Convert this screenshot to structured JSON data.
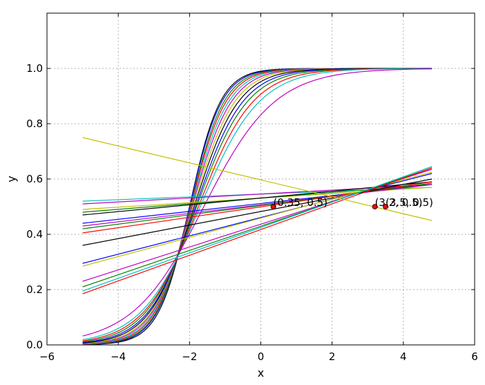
{
  "chart_data": {
    "type": "line",
    "title": "",
    "xlabel": "x",
    "ylabel": "y",
    "xlim": [
      -6,
      6
    ],
    "ylim": [
      0,
      1.2
    ],
    "xticks": [
      "−6",
      "−4",
      "−2",
      "0",
      "2",
      "4",
      "6"
    ],
    "xtick_values": [
      -6,
      -4,
      -2,
      0,
      2,
      4,
      6
    ],
    "yticks": [
      "0.0",
      "0.2",
      "0.4",
      "0.6",
      "0.8",
      "1.0"
    ],
    "ytick_values": [
      0,
      0.2,
      0.4,
      0.6,
      0.8,
      1.0
    ],
    "grid": true,
    "x_range": [
      -5,
      4.8
    ],
    "logistic_curves": [
      {
        "color": "#000000",
        "center": -2.0,
        "steepness": 2.3
      },
      {
        "color": "#0000ff",
        "center": -2.0,
        "steepness": 2.2
      },
      {
        "color": "#008000",
        "center": -1.98,
        "steepness": 2.1
      },
      {
        "color": "#ff0000",
        "center": -1.97,
        "steepness": 2.0
      },
      {
        "color": "#00bfbf",
        "center": -1.95,
        "steepness": 1.9
      },
      {
        "color": "#bf00bf",
        "center": -1.93,
        "steepness": 1.8
      },
      {
        "color": "#bfbf00",
        "center": -1.9,
        "steepness": 1.7
      },
      {
        "color": "#000000",
        "center": -1.87,
        "steepness": 1.6
      },
      {
        "color": "#0000ff",
        "center": -1.83,
        "steepness": 1.5
      },
      {
        "color": "#008000",
        "center": -1.8,
        "steepness": 1.4
      },
      {
        "color": "#ff0000",
        "center": -1.75,
        "steepness": 1.3
      },
      {
        "color": "#00bfbf",
        "center": -1.7,
        "steepness": 1.2
      },
      {
        "color": "#bf00bf",
        "center": -1.6,
        "steepness": 1.0
      }
    ],
    "lines": [
      {
        "color": "#00bfbf",
        "y_start": 0.52,
        "y_end": 0.57
      },
      {
        "color": "#bf00bf",
        "y_start": 0.51,
        "y_end": 0.58
      },
      {
        "color": "#bfbf00",
        "y_start": 0.49,
        "y_end": 0.57
      },
      {
        "color": "#008000",
        "y_start": 0.48,
        "y_end": 0.58
      },
      {
        "color": "#000000",
        "y_start": 0.47,
        "y_end": 0.59
      },
      {
        "color": "#0000ff",
        "y_start": 0.44,
        "y_end": 0.58
      },
      {
        "color": "#bf00bf",
        "y_start": 0.43,
        "y_end": 0.58
      },
      {
        "color": "#008000",
        "y_start": 0.42,
        "y_end": 0.585
      },
      {
        "color": "#ff0000",
        "y_start": 0.405,
        "y_end": 0.59
      },
      {
        "color": "#000000",
        "y_start": 0.36,
        "y_end": 0.6
      },
      {
        "color": "#0000ff",
        "y_start": 0.295,
        "y_end": 0.62
      },
      {
        "color": "#bfbf00",
        "y_start": 0.285,
        "y_end": 0.625
      },
      {
        "color": "#bf00bf",
        "y_start": 0.23,
        "y_end": 0.635
      },
      {
        "color": "#008000",
        "y_start": 0.21,
        "y_end": 0.64
      },
      {
        "color": "#00bfbf",
        "y_start": 0.195,
        "y_end": 0.645
      },
      {
        "color": "#ff0000",
        "y_start": 0.185,
        "y_end": 0.64
      },
      {
        "color": "#bfbf00",
        "y_start": 0.75,
        "y_end": 0.45
      }
    ],
    "points": [
      {
        "x": 0.35,
        "y": 0.5,
        "label": "(0.35, 0.5)"
      },
      {
        "x": 3.2,
        "y": 0.5,
        "label": "(3.2, 0.5)"
      },
      {
        "x": 3.5,
        "y": 0.5,
        "label": "(3.5, 0.5)"
      }
    ],
    "point_color": "#ff0000"
  }
}
